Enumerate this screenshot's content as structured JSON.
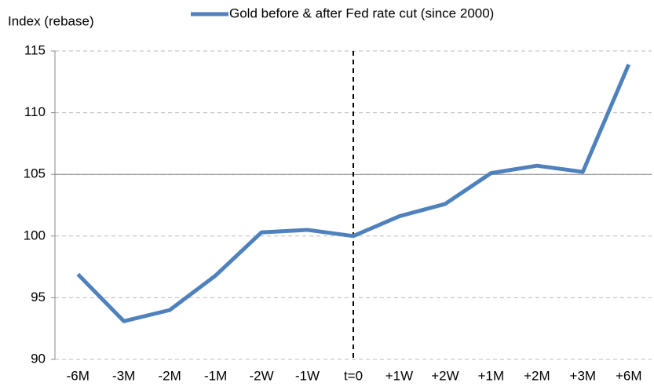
{
  "chart_data": {
    "type": "line",
    "y_axis_label": "Index (rebase)",
    "categories": [
      "-6M",
      "-3M",
      "-2M",
      "-1M",
      "-2W",
      "-1W",
      "t=0",
      "+1W",
      "+2W",
      "+1M",
      "+2M",
      "+3M",
      "+6M"
    ],
    "series": [
      {
        "name": "Gold before & after Fed rate cut (since 2000)",
        "color": "#4f81bd",
        "values": [
          96.9,
          93.1,
          94.0,
          96.8,
          100.3,
          100.5,
          100.0,
          101.6,
          102.6,
          105.1,
          105.7,
          105.2,
          113.9
        ]
      }
    ],
    "ylim": [
      90,
      115
    ],
    "yticks": [
      90,
      95,
      100,
      105,
      110,
      115
    ],
    "grid": true
  }
}
